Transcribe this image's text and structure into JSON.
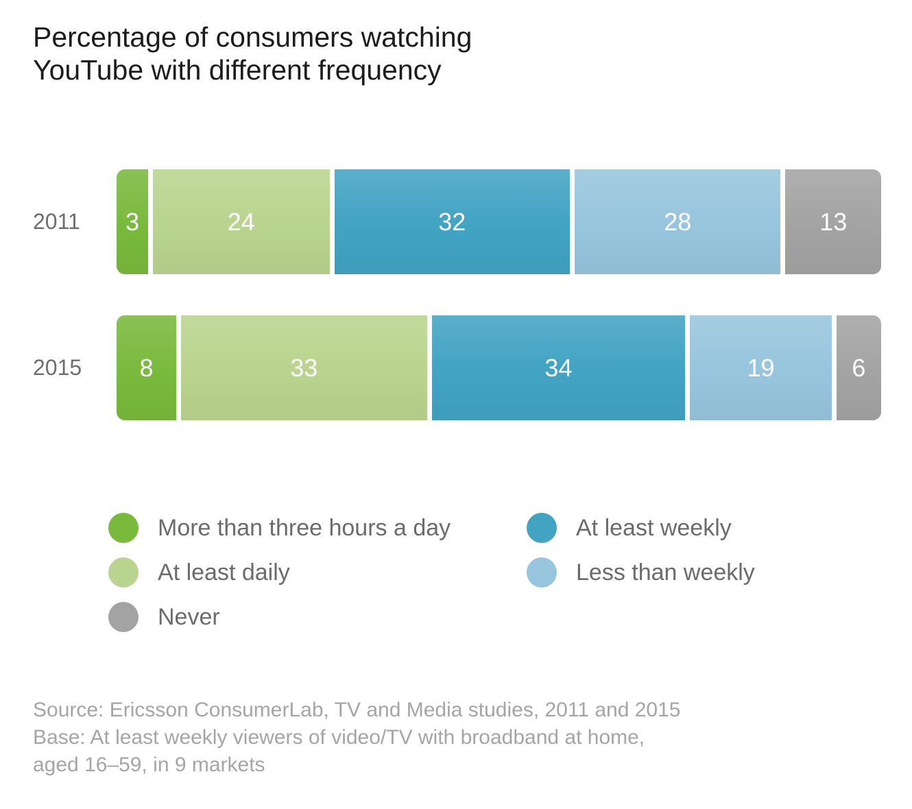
{
  "title": {
    "line1": "Percentage of consumers watching",
    "line2": "YouTube with different frequency"
  },
  "chart_data": {
    "type": "bar",
    "variant": "horizontal-stacked",
    "unit": "%",
    "title": "Percentage of consumers watching YouTube with different frequency",
    "categories": [
      "2011",
      "2015"
    ],
    "series": [
      {
        "name": "More than three hours a day",
        "color": "#79b93c",
        "values": [
          3,
          8
        ]
      },
      {
        "name": "At least daily",
        "color": "#b9d48e",
        "values": [
          24,
          33
        ]
      },
      {
        "name": "At least weekly",
        "color": "#42a3c3",
        "values": [
          32,
          34
        ]
      },
      {
        "name": "Less than weekly",
        "color": "#97c5dd",
        "values": [
          28,
          19
        ]
      },
      {
        "name": "Never",
        "color": "#a3a3a3",
        "values": [
          13,
          6
        ]
      }
    ],
    "xlim": [
      0,
      100
    ],
    "grid": false,
    "legend_position": "bottom",
    "legend_columns": [
      [
        "More than three hours a day",
        "At least daily",
        "Never"
      ],
      [
        "At least weekly",
        "Less than weekly"
      ]
    ]
  },
  "source": {
    "line1": "Source: Ericsson ConsumerLab, TV and Media studies, 2011 and 2015",
    "line2": "Base: At least weekly viewers of video/TV with broadband at home,",
    "line3": "aged 16–59, in 9 markets"
  }
}
